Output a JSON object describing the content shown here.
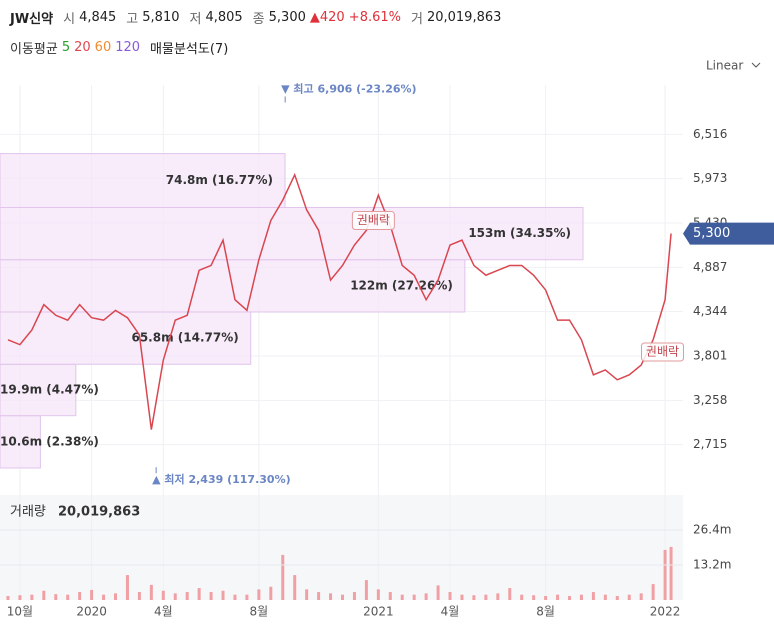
{
  "header": {
    "name": "JW신약",
    "fields": [
      {
        "label": "시",
        "value": "4,845"
      },
      {
        "label": "고",
        "value": "5,810"
      },
      {
        "label": "저",
        "value": "4,805"
      },
      {
        "label": "종",
        "value": "5,300"
      }
    ],
    "change": "▲420 +8.61%",
    "volume_label": "거",
    "volume": "20,019,863"
  },
  "legend": {
    "title": "이동평균",
    "periods": [
      {
        "label": "5",
        "color": "#2ca02c"
      },
      {
        "label": "20",
        "color": "#e0484f"
      },
      {
        "label": "60",
        "color": "#f08c30"
      },
      {
        "label": "120",
        "color": "#8a5cd6"
      }
    ],
    "profile": "매물분석도(7)"
  },
  "scale_button": "Linear",
  "chart_data": [
    {
      "type": "line",
      "color": "#d9464f",
      "x": [
        1,
        2,
        3,
        4,
        5,
        6,
        7,
        8,
        9,
        10,
        11,
        12,
        13,
        14,
        15,
        16,
        17,
        18,
        19,
        20,
        21,
        22,
        23,
        24,
        25,
        26,
        27,
        28,
        29,
        30,
        31,
        32,
        33,
        34,
        35,
        36,
        37,
        38,
        39,
        40,
        41,
        42,
        43,
        44,
        45,
        46,
        47,
        48,
        49,
        50,
        51,
        52,
        53,
        54,
        55,
        56,
        56.5
      ],
      "values": [
        4000,
        3940,
        4120,
        4430,
        4300,
        4240,
        4430,
        4270,
        4240,
        4360,
        4270,
        4060,
        2900,
        3750,
        4240,
        4300,
        4850,
        4910,
        5220,
        4490,
        4360,
        4980,
        5460,
        5710,
        6020,
        5590,
        5340,
        4730,
        4910,
        5160,
        5340,
        5770,
        5400,
        4910,
        4790,
        4490,
        4730,
        5160,
        5220,
        4910,
        4790,
        4850,
        4910,
        4910,
        4790,
        4610,
        4240,
        4240,
        4000,
        3570,
        3630,
        3510,
        3570,
        3690,
        4000,
        4490,
        5300
      ],
      "xlim": [
        0.5,
        57.5
      ],
      "ylim": [
        2160,
        7120
      ],
      "yticks": [
        {
          "value": 2715,
          "label": "2,715"
        },
        {
          "value": 3258,
          "label": "3,258"
        },
        {
          "value": 3801,
          "label": "3,801"
        },
        {
          "value": 4344,
          "label": "4,344"
        },
        {
          "value": 4887,
          "label": "4,887"
        },
        {
          "value": 5430,
          "label": "5,430"
        },
        {
          "value": 5973,
          "label": "5,973"
        },
        {
          "value": 6516,
          "label": "6,516"
        }
      ],
      "last": {
        "value": 5300,
        "label": "5,300"
      },
      "high": {
        "value": 6906,
        "x": 24.2,
        "label": "▼ 최고 6,906 (-23.26%)"
      },
      "low": {
        "value": 2439,
        "x": 13.4,
        "label": "▲ 최저 2,439 (117.30%)"
      },
      "events": [
        {
          "label": "권배락",
          "x": 31.5,
          "value": 5460
        },
        {
          "label": "권배락",
          "x": 55.7,
          "value": 3850
        }
      ],
      "volume_profile": {
        "bins": [
          2430,
          3070,
          3700,
          4340,
          4980,
          5620,
          6280
        ],
        "values": [
          10600000,
          19900000,
          65800000,
          122000000,
          153000000,
          74800000
        ],
        "value_labels": [
          "10.6m (2.38%)",
          "19.9m (4.47%)",
          "65.8m (14.77%)",
          "122m (27.26%)",
          "153m (34.35%)",
          "74.8m (16.77%)"
        ],
        "color": "#f6e6fa"
      }
    },
    {
      "type": "bar",
      "title": "거래량",
      "subtitle": "20,019,863",
      "color": "#f0a0a4",
      "x": [
        1,
        2,
        3,
        4,
        5,
        6,
        7,
        8,
        9,
        10,
        11,
        12,
        13,
        14,
        15,
        16,
        17,
        18,
        19,
        20,
        21,
        22,
        23,
        24,
        25,
        26,
        27,
        28,
        29,
        30,
        31,
        32,
        33,
        34,
        35,
        36,
        37,
        38,
        39,
        40,
        41,
        42,
        43,
        44,
        45,
        46,
        47,
        48,
        49,
        50,
        51,
        52,
        53,
        54,
        55,
        56,
        56.5
      ],
      "values": [
        1500000,
        1800000,
        2000000,
        3500000,
        2200000,
        2000000,
        3000000,
        3800000,
        2000000,
        2500000,
        9400000,
        3000000,
        5700000,
        3500000,
        2500000,
        3000000,
        4500000,
        3000000,
        3500000,
        2000000,
        2000000,
        4000000,
        5000000,
        17000000,
        9400000,
        4000000,
        3000000,
        2500000,
        2000000,
        3000000,
        7500000,
        4000000,
        3000000,
        2000000,
        2000000,
        2500000,
        5500000,
        3000000,
        2000000,
        1800000,
        2000000,
        2500000,
        4500000,
        2000000,
        1800000,
        1500000,
        2000000,
        1500000,
        2000000,
        3000000,
        2000000,
        1500000,
        2000000,
        2500000,
        6000000,
        18900000,
        20019863
      ],
      "xlim": [
        0.5,
        57.5
      ],
      "ylim": [
        0,
        39600000
      ],
      "yticks": [
        {
          "value": 13200000,
          "label": "13.2m"
        },
        {
          "value": 26400000,
          "label": "26.4m"
        }
      ],
      "xticks": [
        {
          "value": 2,
          "label": "10월"
        },
        {
          "value": 8,
          "label": "2020"
        },
        {
          "value": 14,
          "label": "4월"
        },
        {
          "value": 22,
          "label": "8월"
        },
        {
          "value": 32,
          "label": "2021"
        },
        {
          "value": 38,
          "label": "4월"
        },
        {
          "value": 46,
          "label": "8월"
        },
        {
          "value": 56,
          "label": "2022"
        }
      ]
    }
  ]
}
